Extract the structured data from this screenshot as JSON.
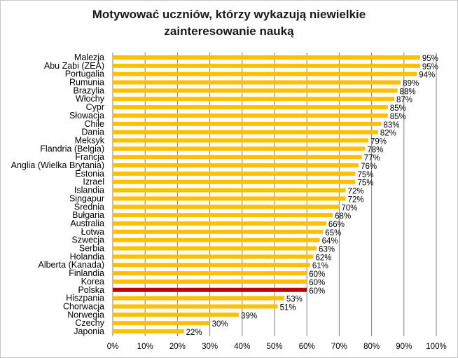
{
  "chart_data": {
    "type": "bar",
    "orientation": "horizontal",
    "title_lines": [
      "Motywować uczniów, którzy wykazują niewielkie",
      "zainteresowanie nauką"
    ],
    "categories": [
      "Malezja",
      "Abu Zabi (ZEA)",
      "Portugalia",
      "Rumunia",
      "Brazylia",
      "Włochy",
      "Cypr",
      "Słowacja",
      "Chile",
      "Dania",
      "Meksyk",
      "Flandria (Belgia)",
      "Francja",
      "Anglia (Wielka Brytania)",
      "Estonia",
      "Izrael",
      "Islandia",
      "Singapur",
      "Średnia",
      "Bułgaria",
      "Australia",
      "Łotwa",
      "Szwecja",
      "Serbia",
      "Holandia",
      "Alberta (Kanada)",
      "Finlandia",
      "Korea",
      "Polska",
      "Hiszpania",
      "Chorwacja",
      "Norwegia",
      "Czechy",
      "Japonia"
    ],
    "values": [
      95,
      95,
      94,
      89,
      88,
      87,
      85,
      85,
      83,
      82,
      79,
      78,
      77,
      76,
      75,
      75,
      72,
      72,
      70,
      68,
      66,
      65,
      64,
      63,
      62,
      61,
      60,
      60,
      60,
      53,
      51,
      39,
      30,
      22
    ],
    "value_labels": [
      "95%",
      "95%",
      "94%",
      "89%",
      "88%",
      "87%",
      "85%",
      "85%",
      "83%",
      "82%",
      "79%",
      "78%",
      "77%",
      "76%",
      "75%",
      "75%",
      "72%",
      "72%",
      "70%",
      "68%",
      "66%",
      "65%",
      "64%",
      "63%",
      "62%",
      "61%",
      "60%",
      "60%",
      "60%",
      "53%",
      "51%",
      "39%",
      "30%",
      "22%"
    ],
    "highlight_category": "Polska",
    "xlim": [
      0,
      100
    ],
    "x_ticks": [
      0,
      10,
      20,
      30,
      40,
      50,
      60,
      70,
      80,
      90,
      100
    ],
    "x_tick_labels": [
      "0%",
      "10%",
      "20%",
      "30%",
      "40%",
      "50%",
      "60%",
      "70%",
      "80%",
      "90%",
      "100%"
    ],
    "grid": "vertical",
    "legend": "none",
    "colors": {
      "bar": "#FFC000",
      "highlight_bar": "#C00000",
      "grid": "#7f7f7f"
    }
  }
}
